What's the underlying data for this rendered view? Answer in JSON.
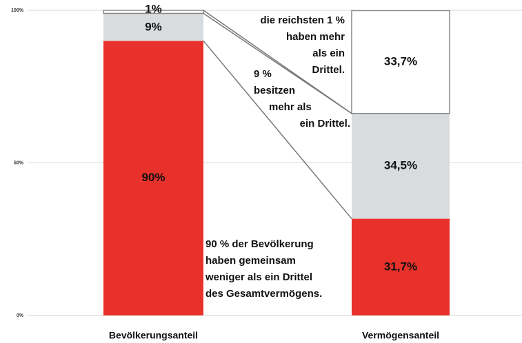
{
  "chart_data": {
    "type": "stacked_bar",
    "categories": [
      "Bevölkerungsanteil",
      "Vermögensanteil"
    ],
    "series": [
      {
        "color": "#e8312a",
        "label_color": "#ffffff",
        "values": [
          90,
          31.7
        ],
        "value_labels": [
          "90%",
          "31,7%"
        ]
      },
      {
        "color": "#d9dcdf",
        "label_color": "#111111",
        "values": [
          9,
          34.5
        ],
        "value_labels": [
          "9%",
          "34,5%"
        ]
      },
      {
        "color": "#ffffff",
        "label_color": "#111111",
        "values": [
          1,
          33.7
        ],
        "value_labels": [
          "1%",
          "33,7%"
        ]
      }
    ],
    "ylim": [
      0,
      100
    ],
    "yticks": [
      {
        "value": 0,
        "label": "0%"
      },
      {
        "value": 50,
        "label": "50%"
      },
      {
        "value": 100,
        "label": "100%"
      }
    ],
    "grid": true,
    "annotations": [
      {
        "lines": [
          "die reichsten 1 %",
          "haben mehr",
          "als ein",
          "Drittel."
        ]
      },
      {
        "lines": [
          "9 %",
          "besitzen",
          "mehr als",
          "ein Drittel."
        ]
      },
      {
        "lines": [
          "90 % der Bevölkerung",
          "haben gemeinsam",
          "weniger als ein Drittel",
          "des Gesamtvermögens."
        ]
      }
    ]
  }
}
